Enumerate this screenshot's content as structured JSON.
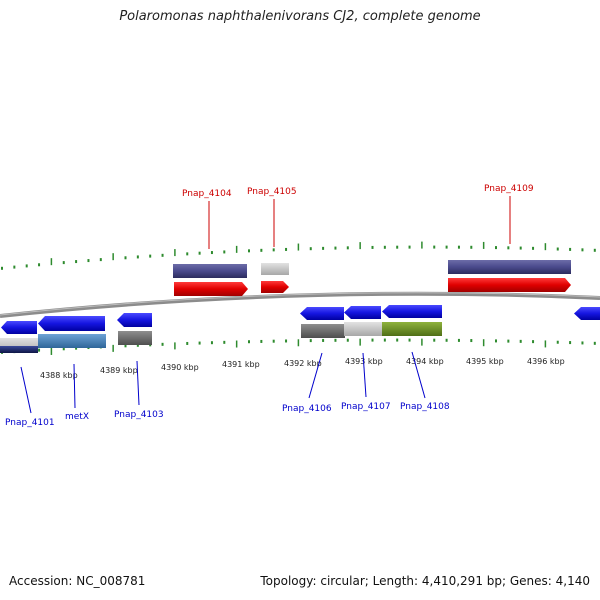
{
  "title": "Polaromonas naphthalenivorans CJ2, complete genome",
  "footer": {
    "accession": "Accession: NC_008781",
    "topology": "Topology: circular; Length: 4,410,291 bp; Genes: 4,140"
  },
  "colors": {
    "backbone": "#8c8c8c",
    "tick": "#2e8b2e",
    "forward_gene": "#d40000",
    "forward_track": "#4a4a8c",
    "reverse_gene": "#1a1ae6",
    "label_top": "#cc0000",
    "label_bottom": "#0000cc",
    "grey_track": "#6e6e6e",
    "light_track": "#c8c8c8",
    "blue_track": "#4b86bf",
    "green_track": "#6b8e23",
    "navy_track": "#1f2a6b"
  },
  "ticks": {
    "labels": [
      "4388 kbp",
      "4389 kbp",
      "4390 kbp",
      "4391 kbp",
      "4392 kbp",
      "4393 kbp",
      "4394 kbp",
      "4395 kbp",
      "4396 kbp"
    ]
  },
  "genes_top": [
    {
      "name": "Pnap_4104"
    },
    {
      "name": "Pnap_4105"
    },
    {
      "name": "Pnap_4109"
    }
  ],
  "genes_bottom": [
    {
      "name": "Pnap_4101"
    },
    {
      "name": "metX"
    },
    {
      "name": "Pnap_4103"
    },
    {
      "name": "Pnap_4106"
    },
    {
      "name": "Pnap_4107"
    },
    {
      "name": "Pnap_4108"
    }
  ]
}
